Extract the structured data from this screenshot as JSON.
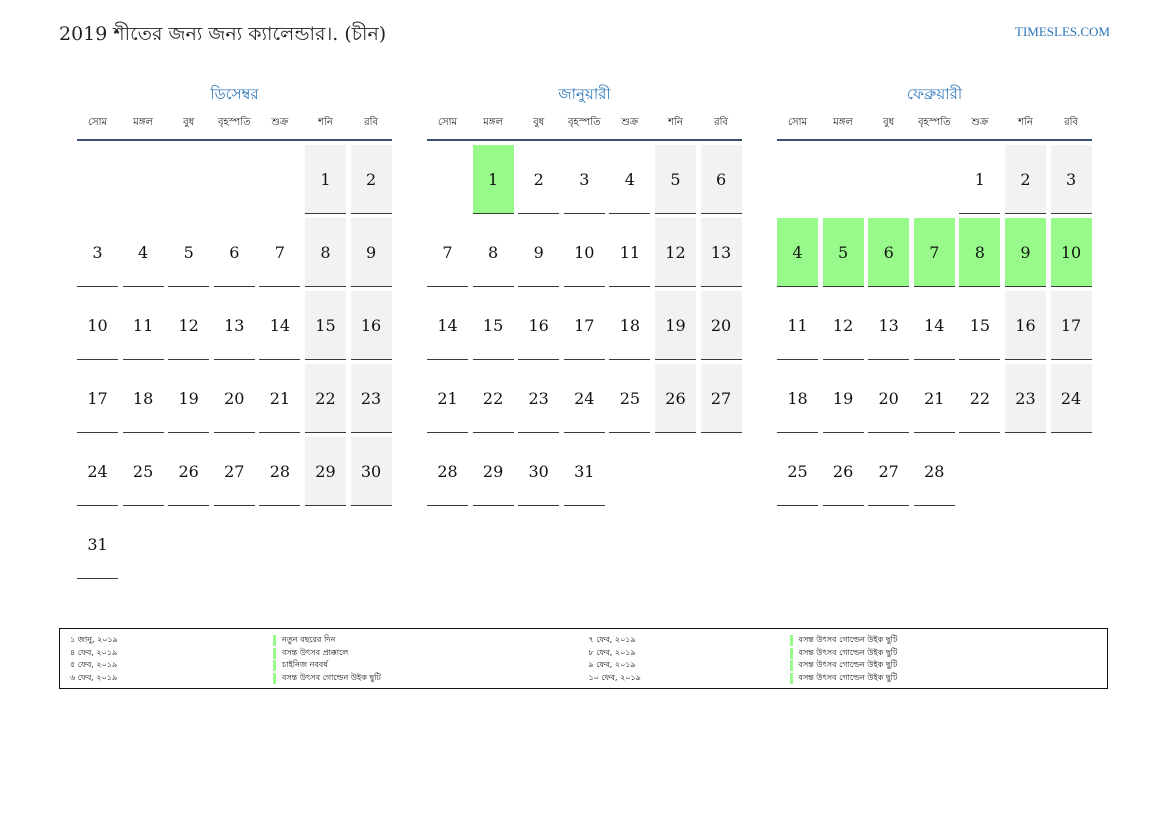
{
  "header": {
    "title": "2019 শীতের জন্য জন্য ক্যালেন্ডার।. (চীন)",
    "site": "TIMESLES.COM"
  },
  "colors": {
    "accent": "#2a73b8",
    "holiday": "#98fa8a",
    "weekend": "#f2f2f2",
    "rule": "#3b4f6e"
  },
  "weekdays": [
    "সোম",
    "মঙ্গল",
    "বুধ",
    "বৃহস্পতি",
    "শুক্র",
    "শনি",
    "রবি"
  ],
  "months": [
    {
      "name": "ডিসেম্বর",
      "leading_blanks": 5,
      "days": 31,
      "holidays": []
    },
    {
      "name": "জানুয়ারী",
      "leading_blanks": 1,
      "days": 31,
      "holidays": [
        1
      ]
    },
    {
      "name": "ফেব্রুয়ারী",
      "leading_blanks": 4,
      "days": 28,
      "holidays": [
        4,
        5,
        6,
        7,
        8,
        9,
        10
      ]
    }
  ],
  "legend": {
    "left": [
      {
        "date": "১ জানু, ২০১৯",
        "name": "নতুন বছরের দিন"
      },
      {
        "date": "৪ ফেব, ২০১৯",
        "name": "বসন্ত উৎসব প্রাক্কালে"
      },
      {
        "date": "৫ ফেব, ২০১৯",
        "name": "চাইনিজ নববর্ষ"
      },
      {
        "date": "৬ ফেব, ২০১৯",
        "name": "বসন্ত উৎসব গোল্ডেন উইক ছুটি"
      }
    ],
    "right": [
      {
        "date": "৭ ফেব, ২০১৯",
        "name": "বসন্ত উৎসব গোল্ডেন উইক ছুটি"
      },
      {
        "date": "৮ ফেব, ২০১৯",
        "name": "বসন্ত উৎসব গোল্ডেন উইক ছুটি"
      },
      {
        "date": "৯ ফেব, ২০১৯",
        "name": "বসন্ত উৎসব গোল্ডেন উইক ছুটি"
      },
      {
        "date": "১০ ফেব, ২০১৯",
        "name": "বসন্ত উৎসব গোল্ডেন উইক ছুটি"
      }
    ]
  }
}
